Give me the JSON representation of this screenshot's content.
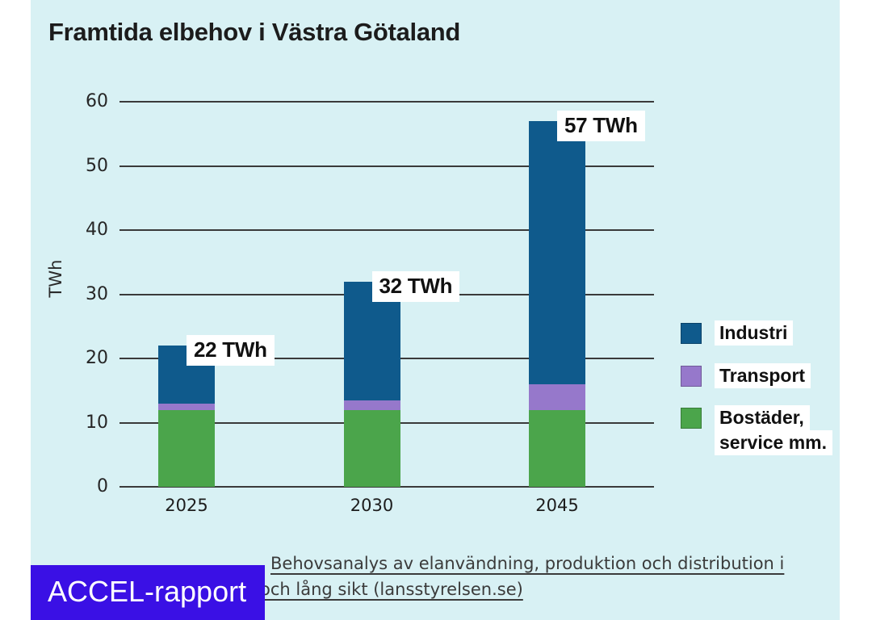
{
  "chart_data": {
    "type": "bar",
    "stacked": true,
    "title": "Framtida elbehov i Västra Götaland",
    "ylabel": "TWh",
    "xlabel": "",
    "ylim": [
      0,
      60
    ],
    "yticks": [
      0,
      10,
      20,
      30,
      40,
      50,
      60
    ],
    "grid": true,
    "legend_position": "right",
    "categories": [
      "2025",
      "2030",
      "2045"
    ],
    "series": [
      {
        "name": "Industri",
        "color": "#0f5a8c",
        "values": [
          9,
          18.5,
          41
        ],
        "legend_lines": [
          "Industri"
        ]
      },
      {
        "name": "Transport",
        "color": "#9678cb",
        "values": [
          1,
          1.5,
          4
        ],
        "legend_lines": [
          "Transport"
        ]
      },
      {
        "name": "Bostäder, service mm.",
        "color": "#4ba54b",
        "values": [
          12,
          12,
          12
        ],
        "legend_lines": [
          "Bostäder,",
          "service mm."
        ]
      }
    ],
    "totals": [
      22,
      32,
      57
    ],
    "total_labels": [
      "22 TWh",
      "32 TWh",
      "57 TWh"
    ]
  },
  "footer": {
    "source_line1": "Behovsanalys av elanvändning, produktion och distribution i",
    "source_line2": "och lång sikt (lansstyrelsen.se)",
    "badge_label": "ACCEL-rapport"
  },
  "colors": {
    "slide_background": "#d8f1f4",
    "page_margin": "#ffffff",
    "gridline": "#3a3a3a",
    "title_text": "#1c1c1c",
    "caption_text": "#3b3b3b",
    "badge_background": "#3a10e5",
    "badge_text": "#ffffff",
    "value_label_background": "#ffffff",
    "industri": "#0f5a8c",
    "transport": "#9678cb",
    "bostader": "#4ba54b"
  }
}
